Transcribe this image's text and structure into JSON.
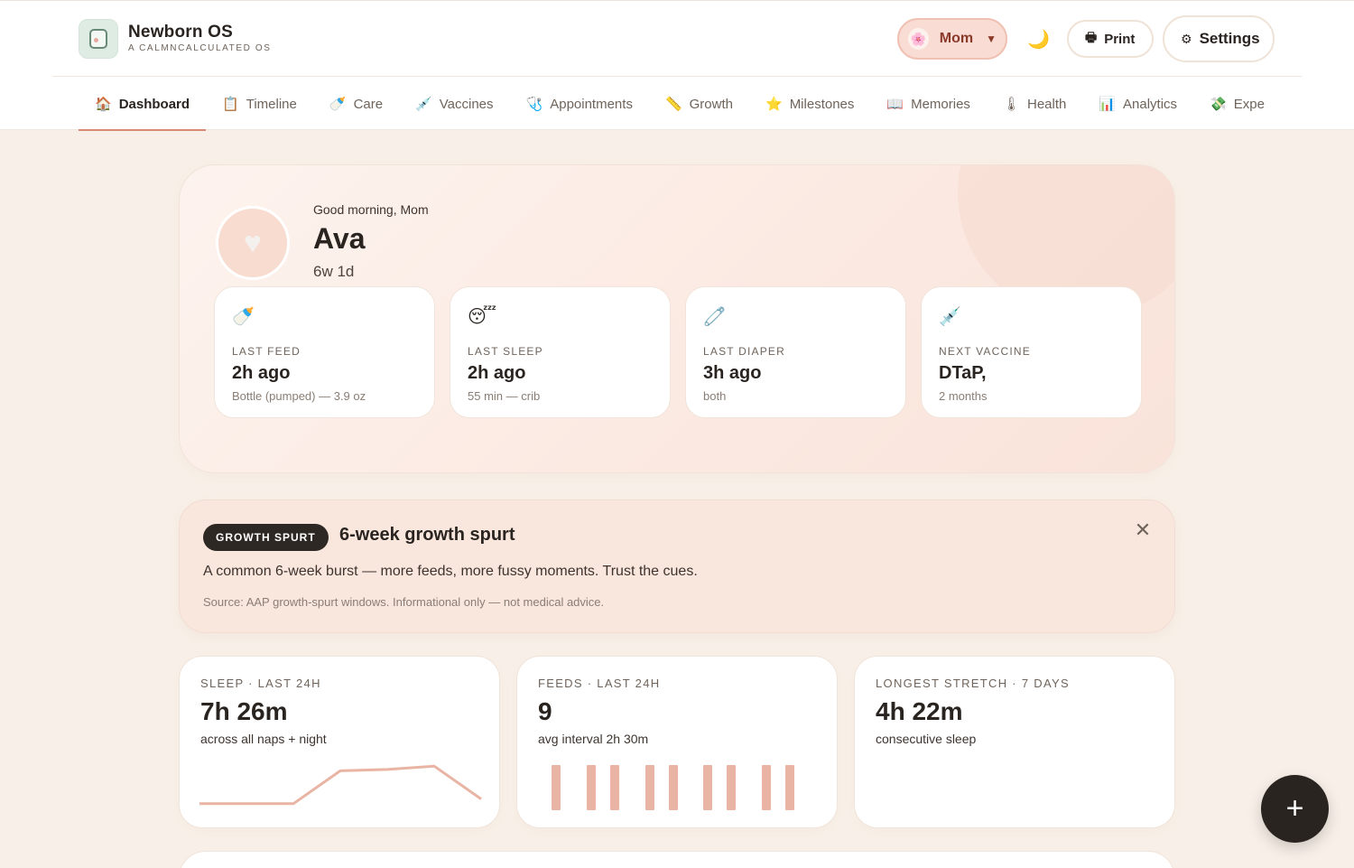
{
  "app": {
    "name": "Newborn OS",
    "tagline": "A CALMNCALCULATED OS"
  },
  "header": {
    "profile_label": "Mom",
    "profile_icon": "🌸",
    "theme_icon": "🌙",
    "print_label": "Print",
    "print_icon": "🖶",
    "settings_label": "Settings",
    "settings_icon": "⚙"
  },
  "nav": {
    "items": [
      {
        "icon": "🏠",
        "label": "Dashboard"
      },
      {
        "icon": "📋",
        "label": "Timeline"
      },
      {
        "icon": "🍼",
        "label": "Care"
      },
      {
        "icon": "💉",
        "label": "Vaccines"
      },
      {
        "icon": "🩺",
        "label": "Appointments"
      },
      {
        "icon": "📏",
        "label": "Growth"
      },
      {
        "icon": "⭐",
        "label": "Milestones"
      },
      {
        "icon": "📖",
        "label": "Memories"
      },
      {
        "icon": "🌡",
        "label": "Health"
      },
      {
        "icon": "📊",
        "label": "Analytics"
      },
      {
        "icon": "💸",
        "label": "Expe"
      }
    ]
  },
  "hero": {
    "avatar_icon": "♥",
    "greeting": "Good morning, Mom",
    "baby_name": "Ava",
    "age": "6w 1d",
    "stats": [
      {
        "icon": "🍼",
        "label": "LAST FEED",
        "value": "2h ago",
        "sub": "Bottle (pumped) — 3.9 oz"
      },
      {
        "icon": "😴",
        "label": "LAST SLEEP",
        "value": "2h ago",
        "sub": "55 min — crib"
      },
      {
        "icon": "🧷",
        "label": "LAST DIAPER",
        "value": "3h ago",
        "sub": "both"
      },
      {
        "icon": "💉",
        "label": "NEXT VACCINE",
        "value": "DTaP,",
        "sub": "2 months"
      }
    ]
  },
  "alert": {
    "badge": "GROWTH SPURT",
    "title": "6-week growth spurt",
    "body": "A common 6-week burst — more feeds, more fussy moments. Trust the cues.",
    "source": "Source: AAP growth-spurt windows. Informational only — not medical advice.",
    "close_icon": "✕"
  },
  "metrics": [
    {
      "label": "SLEEP · LAST 24H",
      "value": "7h 26m",
      "sub": "across all naps + night"
    },
    {
      "label": "FEEDS · LAST 24H",
      "value": "9",
      "sub": "avg interval 2h 30m"
    },
    {
      "label": "LONGEST STRETCH · 7 DAYS",
      "value": "4h 22m",
      "sub": "consecutive sleep"
    }
  ],
  "sparklines": {
    "sleep_trend": [
      0.1,
      0.1,
      0.1,
      0.8,
      0.83,
      0.9,
      0.2
    ],
    "feed_count": 9
  },
  "fab_icon": "+",
  "colors": {
    "accent": "#d98a74",
    "chart": "#e9b4a3",
    "dark": "#2a2420",
    "background": "#f8f0e8"
  }
}
